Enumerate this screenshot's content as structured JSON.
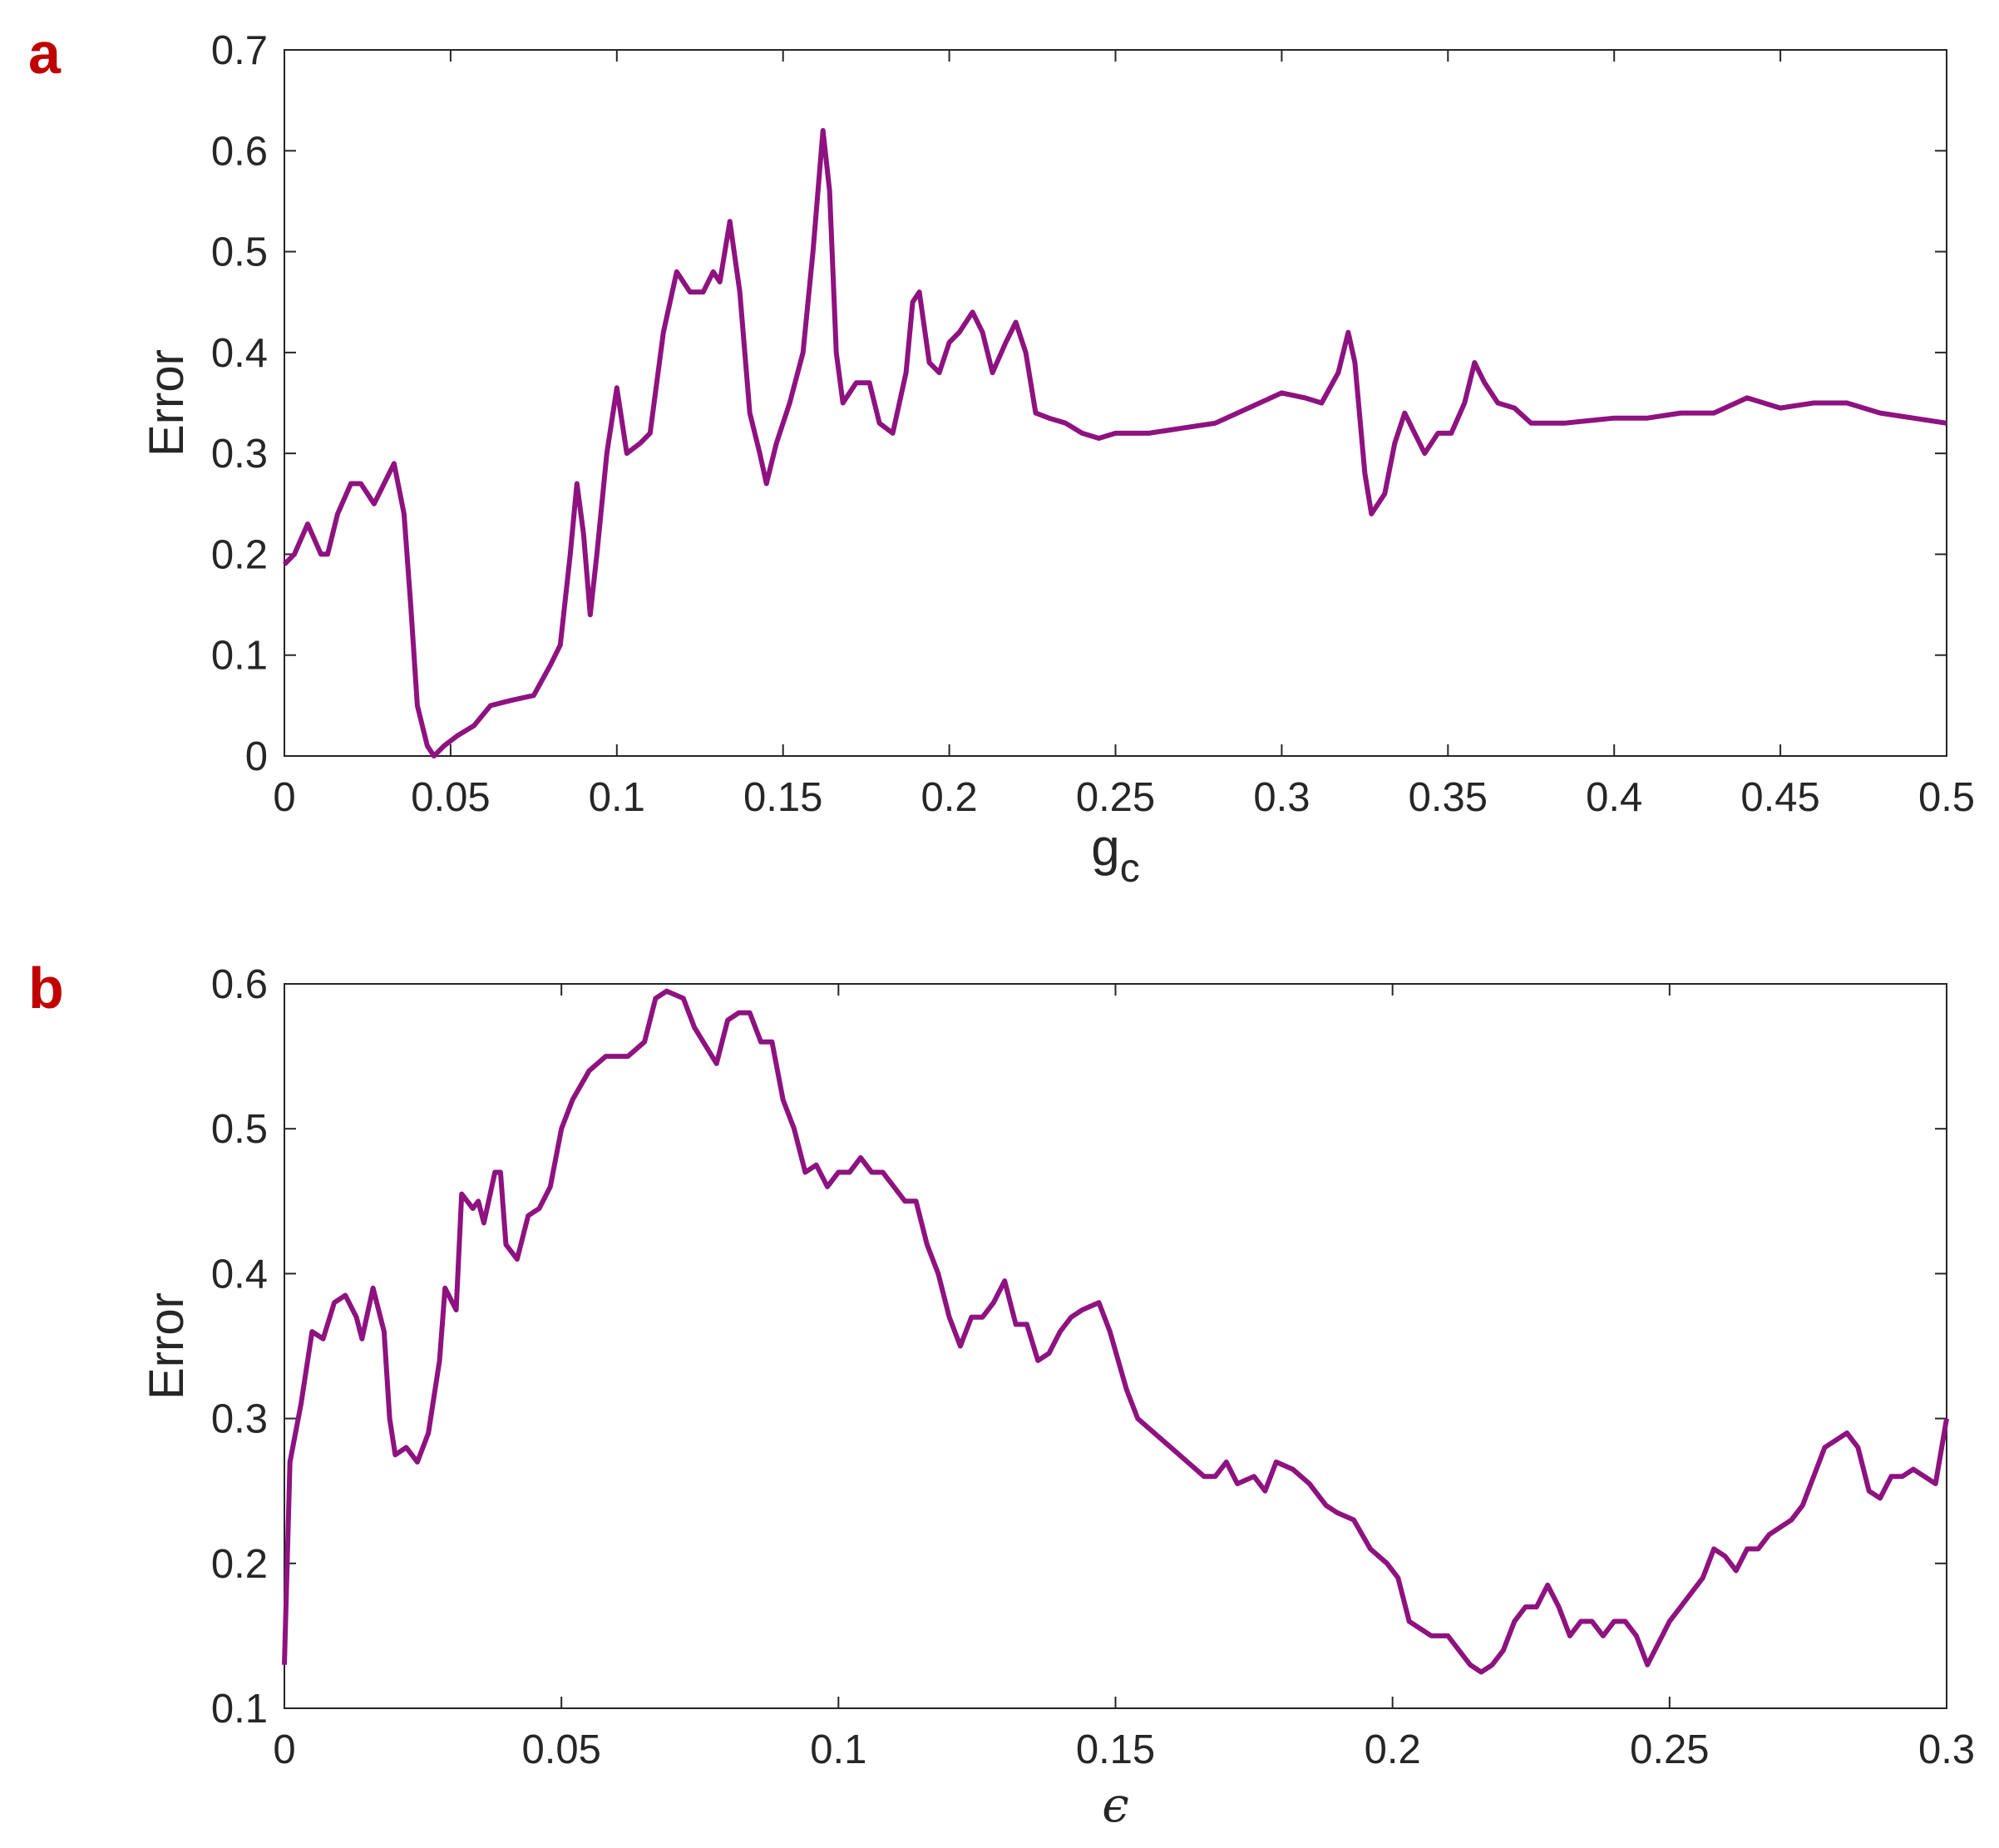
{
  "chart_data": [
    {
      "type": "line",
      "panel_label": "a",
      "ylabel": "Error",
      "xlabel": "g",
      "xlabel_sub": "c",
      "color": "#8e1280",
      "xlim": [
        0,
        0.5
      ],
      "ylim": [
        0,
        0.7
      ],
      "xticks": [
        0,
        0.05,
        0.1,
        0.15,
        0.2,
        0.25,
        0.3,
        0.35,
        0.4,
        0.45,
        0.5
      ],
      "yticks": [
        0,
        0.1,
        0.2,
        0.3,
        0.4,
        0.5,
        0.6,
        0.7
      ],
      "x": [
        0,
        0.003,
        0.007,
        0.011,
        0.013,
        0.016,
        0.02,
        0.023,
        0.027,
        0.03,
        0.033,
        0.036,
        0.038,
        0.04,
        0.043,
        0.045,
        0.048,
        0.052,
        0.057,
        0.062,
        0.068,
        0.075,
        0.08,
        0.083,
        0.086,
        0.088,
        0.09,
        0.092,
        0.094,
        0.097,
        0.1,
        0.103,
        0.107,
        0.11,
        0.114,
        0.118,
        0.122,
        0.126,
        0.129,
        0.131,
        0.134,
        0.137,
        0.14,
        0.143,
        0.145,
        0.148,
        0.152,
        0.156,
        0.159,
        0.162,
        0.164,
        0.166,
        0.168,
        0.172,
        0.176,
        0.179,
        0.183,
        0.187,
        0.189,
        0.191,
        0.194,
        0.197,
        0.2,
        0.203,
        0.207,
        0.21,
        0.213,
        0.217,
        0.22,
        0.223,
        0.226,
        0.23,
        0.235,
        0.24,
        0.245,
        0.25,
        0.26,
        0.27,
        0.28,
        0.29,
        0.3,
        0.307,
        0.312,
        0.317,
        0.32,
        0.322,
        0.325,
        0.327,
        0.331,
        0.334,
        0.337,
        0.34,
        0.343,
        0.347,
        0.351,
        0.355,
        0.358,
        0.361,
        0.365,
        0.37,
        0.375,
        0.385,
        0.4,
        0.41,
        0.42,
        0.43,
        0.44,
        0.45,
        0.46,
        0.47,
        0.48,
        0.49,
        0.5
      ],
      "values": [
        0.19,
        0.2,
        0.23,
        0.2,
        0.2,
        0.24,
        0.27,
        0.27,
        0.25,
        0.27,
        0.29,
        0.24,
        0.15,
        0.05,
        0.01,
        0.0,
        0.01,
        0.02,
        0.03,
        0.05,
        0.055,
        0.06,
        0.09,
        0.11,
        0.2,
        0.27,
        0.22,
        0.14,
        0.2,
        0.3,
        0.365,
        0.3,
        0.31,
        0.32,
        0.42,
        0.48,
        0.46,
        0.46,
        0.48,
        0.47,
        0.53,
        0.46,
        0.34,
        0.3,
        0.27,
        0.31,
        0.35,
        0.4,
        0.5,
        0.62,
        0.56,
        0.4,
        0.35,
        0.37,
        0.37,
        0.33,
        0.32,
        0.38,
        0.45,
        0.46,
        0.39,
        0.38,
        0.41,
        0.42,
        0.44,
        0.42,
        0.38,
        0.41,
        0.43,
        0.4,
        0.34,
        0.335,
        0.33,
        0.32,
        0.315,
        0.32,
        0.32,
        0.325,
        0.33,
        0.345,
        0.36,
        0.355,
        0.35,
        0.38,
        0.42,
        0.39,
        0.28,
        0.24,
        0.26,
        0.31,
        0.34,
        0.32,
        0.3,
        0.32,
        0.32,
        0.35,
        0.39,
        0.37,
        0.35,
        0.345,
        0.33,
        0.33,
        0.335,
        0.335,
        0.34,
        0.34,
        0.355,
        0.345,
        0.35,
        0.35,
        0.34,
        0.335,
        0.33
      ]
    },
    {
      "type": "line",
      "panel_label": "b",
      "ylabel": "Error",
      "xlabel": "ϵ",
      "color": "#8e1280",
      "xlim": [
        0,
        0.3
      ],
      "ylim": [
        0.1,
        0.6
      ],
      "xticks": [
        0,
        0.05,
        0.1,
        0.15,
        0.2,
        0.25,
        0.3
      ],
      "yticks": [
        0.1,
        0.2,
        0.3,
        0.4,
        0.5,
        0.6
      ],
      "x": [
        0,
        0.001,
        0.003,
        0.005,
        0.007,
        0.009,
        0.011,
        0.013,
        0.014,
        0.016,
        0.018,
        0.019,
        0.02,
        0.022,
        0.024,
        0.026,
        0.028,
        0.029,
        0.031,
        0.032,
        0.034,
        0.035,
        0.036,
        0.038,
        0.039,
        0.04,
        0.042,
        0.044,
        0.046,
        0.048,
        0.05,
        0.052,
        0.055,
        0.058,
        0.062,
        0.065,
        0.067,
        0.069,
        0.072,
        0.074,
        0.078,
        0.08,
        0.082,
        0.084,
        0.086,
        0.088,
        0.09,
        0.092,
        0.094,
        0.096,
        0.098,
        0.1,
        0.102,
        0.104,
        0.106,
        0.108,
        0.11,
        0.112,
        0.114,
        0.116,
        0.118,
        0.12,
        0.122,
        0.124,
        0.126,
        0.128,
        0.13,
        0.132,
        0.134,
        0.136,
        0.138,
        0.14,
        0.142,
        0.144,
        0.147,
        0.149,
        0.152,
        0.154,
        0.157,
        0.16,
        0.163,
        0.166,
        0.168,
        0.17,
        0.172,
        0.175,
        0.177,
        0.179,
        0.182,
        0.185,
        0.188,
        0.19,
        0.193,
        0.196,
        0.199,
        0.201,
        0.203,
        0.205,
        0.207,
        0.21,
        0.212,
        0.214,
        0.216,
        0.218,
        0.22,
        0.222,
        0.224,
        0.226,
        0.228,
        0.23,
        0.232,
        0.234,
        0.236,
        0.238,
        0.24,
        0.242,
        0.244,
        0.246,
        0.248,
        0.25,
        0.252,
        0.254,
        0.256,
        0.258,
        0.26,
        0.262,
        0.264,
        0.266,
        0.268,
        0.27,
        0.272,
        0.274,
        0.276,
        0.278,
        0.28,
        0.282,
        0.284,
        0.286,
        0.288,
        0.29,
        0.292,
        0.294,
        0.296,
        0.298,
        0.3
      ],
      "values": [
        0.13,
        0.27,
        0.31,
        0.36,
        0.355,
        0.38,
        0.385,
        0.37,
        0.355,
        0.39,
        0.36,
        0.3,
        0.275,
        0.28,
        0.27,
        0.29,
        0.34,
        0.39,
        0.375,
        0.455,
        0.445,
        0.45,
        0.435,
        0.47,
        0.47,
        0.42,
        0.41,
        0.44,
        0.445,
        0.46,
        0.5,
        0.52,
        0.54,
        0.55,
        0.55,
        0.56,
        0.59,
        0.595,
        0.59,
        0.57,
        0.545,
        0.575,
        0.58,
        0.58,
        0.56,
        0.56,
        0.52,
        0.5,
        0.47,
        0.475,
        0.46,
        0.47,
        0.47,
        0.48,
        0.47,
        0.47,
        0.46,
        0.45,
        0.45,
        0.42,
        0.4,
        0.37,
        0.35,
        0.37,
        0.37,
        0.38,
        0.395,
        0.365,
        0.365,
        0.34,
        0.345,
        0.36,
        0.37,
        0.375,
        0.38,
        0.36,
        0.32,
        0.3,
        0.29,
        0.28,
        0.27,
        0.26,
        0.26,
        0.27,
        0.255,
        0.26,
        0.25,
        0.27,
        0.265,
        0.255,
        0.24,
        0.235,
        0.23,
        0.21,
        0.2,
        0.19,
        0.16,
        0.155,
        0.15,
        0.15,
        0.14,
        0.13,
        0.125,
        0.13,
        0.14,
        0.16,
        0.17,
        0.17,
        0.185,
        0.17,
        0.15,
        0.16,
        0.16,
        0.15,
        0.16,
        0.16,
        0.15,
        0.13,
        0.145,
        0.16,
        0.17,
        0.18,
        0.19,
        0.21,
        0.205,
        0.195,
        0.21,
        0.21,
        0.22,
        0.225,
        0.23,
        0.24,
        0.26,
        0.28,
        0.285,
        0.29,
        0.28,
        0.25,
        0.245,
        0.26,
        0.26,
        0.265,
        0.26,
        0.255,
        0.3
      ]
    }
  ]
}
